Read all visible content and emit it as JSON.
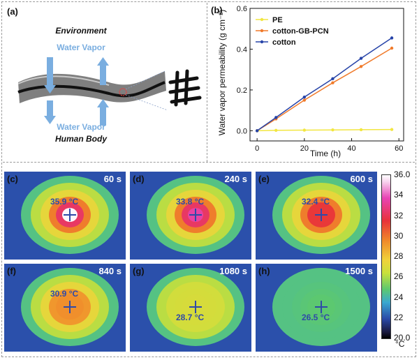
{
  "panel_a": {
    "label": "(a)",
    "environment": "Environment",
    "water_vapor_top": "Water Vapor",
    "water_vapor_bottom": "Water Vapor",
    "human_body": "Human Body"
  },
  "chart_data": {
    "type": "line",
    "label": "(b)",
    "xlabel": "Time (h)",
    "ylabel": "Water vapor permeability (g cm⁻²)",
    "xlim": [
      -3,
      62
    ],
    "ylim": [
      -0.05,
      0.6
    ],
    "xticks": [
      0,
      20,
      40,
      60
    ],
    "yticks": [
      0.0,
      0.2,
      0.4,
      0.6
    ],
    "x": [
      0,
      8,
      20,
      32,
      44,
      57
    ],
    "legend_position": "top-left",
    "series": [
      {
        "name": "PE",
        "color": "#f2e640",
        "values": [
          0.0,
          0.002,
          0.003,
          0.004,
          0.005,
          0.006
        ]
      },
      {
        "name": "cotton-GB-PCN",
        "color": "#f07a2a",
        "values": [
          0.0,
          0.058,
          0.15,
          0.235,
          0.315,
          0.405
        ]
      },
      {
        "name": "cotton",
        "color": "#2643a8",
        "values": [
          0.0,
          0.065,
          0.165,
          0.255,
          0.355,
          0.455
        ]
      }
    ]
  },
  "thermal_images": [
    {
      "label": "(c)",
      "time": "60 s",
      "temp": "35.9 °C",
      "level": 35.9
    },
    {
      "label": "(d)",
      "time": "240 s",
      "temp": "33.8 °C",
      "level": 33.8
    },
    {
      "label": "(e)",
      "time": "600 s",
      "temp": "32.4 °C",
      "level": 32.4
    },
    {
      "label": "(f)",
      "time": "840 s",
      "temp": "30.9 °C",
      "level": 30.9
    },
    {
      "label": "(g)",
      "time": "1080 s",
      "temp": "28.7 °C",
      "level": 28.7
    },
    {
      "label": "(h)",
      "time": "1500 s",
      "temp": "26.5 °C",
      "level": 26.5
    }
  ],
  "colorbar": {
    "ticks": [
      "36.0",
      "34",
      "32",
      "30",
      "28",
      "26",
      "24",
      "22",
      "20.0"
    ],
    "unit": "°C"
  }
}
